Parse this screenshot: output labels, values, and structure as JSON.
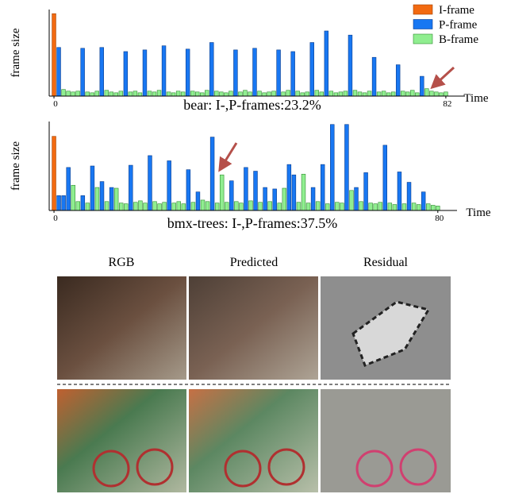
{
  "chart_data": [
    {
      "type": "bar",
      "title": "bear: I-,P-frames:23.2%",
      "xlabel": "Time",
      "ylabel": "frame size",
      "xlim": [
        -1,
        86
      ],
      "xticks": [
        0,
        82
      ],
      "ylim": [
        0,
        105
      ],
      "legend": "upper right",
      "x": [
        0,
        1,
        2,
        3,
        4,
        5,
        6,
        7,
        8,
        9,
        10,
        11,
        12,
        13,
        14,
        15,
        16,
        17,
        18,
        19,
        20,
        21,
        22,
        23,
        24,
        25,
        26,
        27,
        28,
        29,
        30,
        31,
        32,
        33,
        34,
        35,
        36,
        37,
        38,
        39,
        40,
        41,
        42,
        43,
        44,
        45,
        46,
        47,
        48,
        49,
        50,
        51,
        52,
        53,
        54,
        55,
        56,
        57,
        58,
        59,
        60,
        61,
        62,
        63,
        64,
        65,
        66,
        67,
        68,
        69,
        70,
        71,
        72,
        73,
        74,
        75,
        76,
        77,
        78,
        79,
        80,
        81,
        82
      ],
      "series": [
        {
          "name": "I-frame",
          "color": "#f26a11",
          "values": [
            100,
            null,
            null,
            null,
            null,
            null,
            null,
            null,
            null,
            null,
            null,
            null,
            null,
            null,
            null,
            null,
            null,
            null,
            null,
            null,
            null,
            null,
            null,
            null,
            null,
            null,
            null,
            null,
            null,
            null,
            null,
            null,
            null,
            null,
            null,
            null,
            null,
            null,
            null,
            null,
            null,
            null,
            null,
            null,
            null,
            null,
            null,
            null,
            null,
            null,
            null,
            null,
            null,
            null,
            null,
            null,
            null,
            null,
            null,
            null,
            null,
            null,
            null,
            null,
            null,
            null,
            null,
            null,
            null,
            null,
            null,
            null,
            null,
            null,
            null,
            null,
            null,
            null,
            null,
            null,
            null,
            null,
            null
          ]
        },
        {
          "name": "P-frame",
          "color": "#1877f2",
          "values": [
            null,
            59,
            null,
            null,
            null,
            null,
            58,
            null,
            null,
            null,
            59,
            null,
            null,
            null,
            null,
            54,
            null,
            null,
            null,
            56,
            null,
            null,
            null,
            61,
            null,
            null,
            null,
            null,
            57,
            null,
            null,
            null,
            null,
            65,
            null,
            null,
            null,
            null,
            56,
            null,
            null,
            null,
            58,
            null,
            null,
            null,
            null,
            56,
            null,
            null,
            54,
            null,
            null,
            null,
            65,
            null,
            null,
            79,
            null,
            null,
            null,
            null,
            74,
            null,
            null,
            null,
            null,
            47,
            null,
            null,
            null,
            null,
            38,
            null,
            null,
            null,
            null,
            24,
            null,
            null,
            null,
            null,
            null
          ]
        },
        {
          "name": "B-frame",
          "color": "#90ee90",
          "values": [
            null,
            null,
            8,
            6,
            5,
            6,
            null,
            5,
            4,
            6,
            null,
            7,
            5,
            4,
            6,
            null,
            5,
            6,
            4,
            null,
            6,
            5,
            7,
            null,
            5,
            4,
            6,
            5,
            null,
            6,
            5,
            4,
            7,
            null,
            6,
            5,
            4,
            6,
            null,
            5,
            7,
            5,
            null,
            6,
            4,
            5,
            6,
            null,
            5,
            7,
            null,
            6,
            4,
            5,
            null,
            7,
            5,
            null,
            6,
            4,
            5,
            6,
            null,
            7,
            5,
            4,
            6,
            null,
            5,
            6,
            4,
            5,
            null,
            6,
            5,
            7,
            4,
            null,
            9,
            6,
            5,
            4,
            5
          ]
        }
      ]
    },
    {
      "type": "bar",
      "title": "bmx-trees: I-,P-frames:37.5%",
      "xlabel": "Time",
      "ylabel": "frame size",
      "xlim": [
        -1,
        84
      ],
      "xticks": [
        0,
        80
      ],
      "ylim": [
        0,
        120
      ],
      "x": [
        0,
        1,
        2,
        3,
        4,
        5,
        6,
        7,
        8,
        9,
        10,
        11,
        12,
        13,
        14,
        15,
        16,
        17,
        18,
        19,
        20,
        21,
        22,
        23,
        24,
        25,
        26,
        27,
        28,
        29,
        30,
        31,
        32,
        33,
        34,
        35,
        36,
        37,
        38,
        39,
        40,
        41,
        42,
        43,
        44,
        45,
        46,
        47,
        48,
        49,
        50,
        51,
        52,
        53,
        54,
        55,
        56,
        57,
        58,
        59,
        60,
        61,
        62,
        63,
        64,
        65,
        66,
        67,
        68,
        69,
        70,
        71,
        72,
        73,
        74,
        75,
        76,
        77,
        78,
        79,
        80
      ],
      "series": [
        {
          "color": "#f26a11",
          "values": [
            100,
            null,
            null,
            null,
            null,
            null,
            null,
            null,
            null,
            null,
            null,
            null,
            null,
            null,
            null,
            null,
            null,
            null,
            null,
            null,
            null,
            null,
            null,
            null,
            null,
            null,
            null,
            null,
            null,
            null,
            null,
            null,
            null,
            null,
            null,
            null,
            null,
            null,
            null,
            null,
            null,
            null,
            null,
            null,
            null,
            null,
            null,
            null,
            null,
            null,
            null,
            null,
            null,
            null,
            null,
            null,
            null,
            null,
            null,
            null,
            null,
            null,
            null,
            null,
            null,
            null,
            null,
            null,
            null,
            null,
            null,
            null,
            null,
            null,
            null,
            null,
            null,
            null,
            null,
            null,
            null
          ]
        },
        {
          "color": "#1877f2",
          "values": [
            null,
            20,
            20,
            58,
            null,
            null,
            20,
            null,
            60,
            null,
            39,
            null,
            31,
            null,
            null,
            null,
            61,
            null,
            null,
            null,
            74,
            null,
            null,
            null,
            67,
            null,
            null,
            null,
            55,
            null,
            25,
            null,
            null,
            99,
            null,
            null,
            null,
            40,
            null,
            null,
            58,
            null,
            53,
            null,
            31,
            null,
            29,
            null,
            null,
            62,
            48,
            null,
            null,
            null,
            31,
            null,
            62,
            null,
            116,
            null,
            null,
            116,
            null,
            31,
            null,
            51,
            null,
            null,
            null,
            88,
            null,
            null,
            52,
            null,
            38,
            null,
            null,
            25,
            null,
            null,
            null
          ]
        },
        {
          "color": "#90ee90",
          "values": [
            null,
            null,
            null,
            null,
            34,
            12,
            null,
            10,
            null,
            31,
            null,
            12,
            null,
            30,
            10,
            9,
            null,
            11,
            13,
            10,
            null,
            12,
            9,
            11,
            null,
            10,
            12,
            9,
            null,
            11,
            null,
            14,
            12,
            null,
            10,
            48,
            11,
            null,
            12,
            10,
            null,
            13,
            null,
            11,
            null,
            12,
            null,
            10,
            30,
            null,
            null,
            11,
            49,
            10,
            null,
            12,
            null,
            9,
            null,
            11,
            10,
            null,
            27,
            null,
            12,
            null,
            10,
            9,
            11,
            null,
            10,
            8,
            null,
            9,
            null,
            10,
            8,
            null,
            9,
            7,
            6
          ]
        }
      ]
    }
  ],
  "image_grid": {
    "columns": [
      "RGB",
      "Predicted",
      "Residual"
    ]
  }
}
